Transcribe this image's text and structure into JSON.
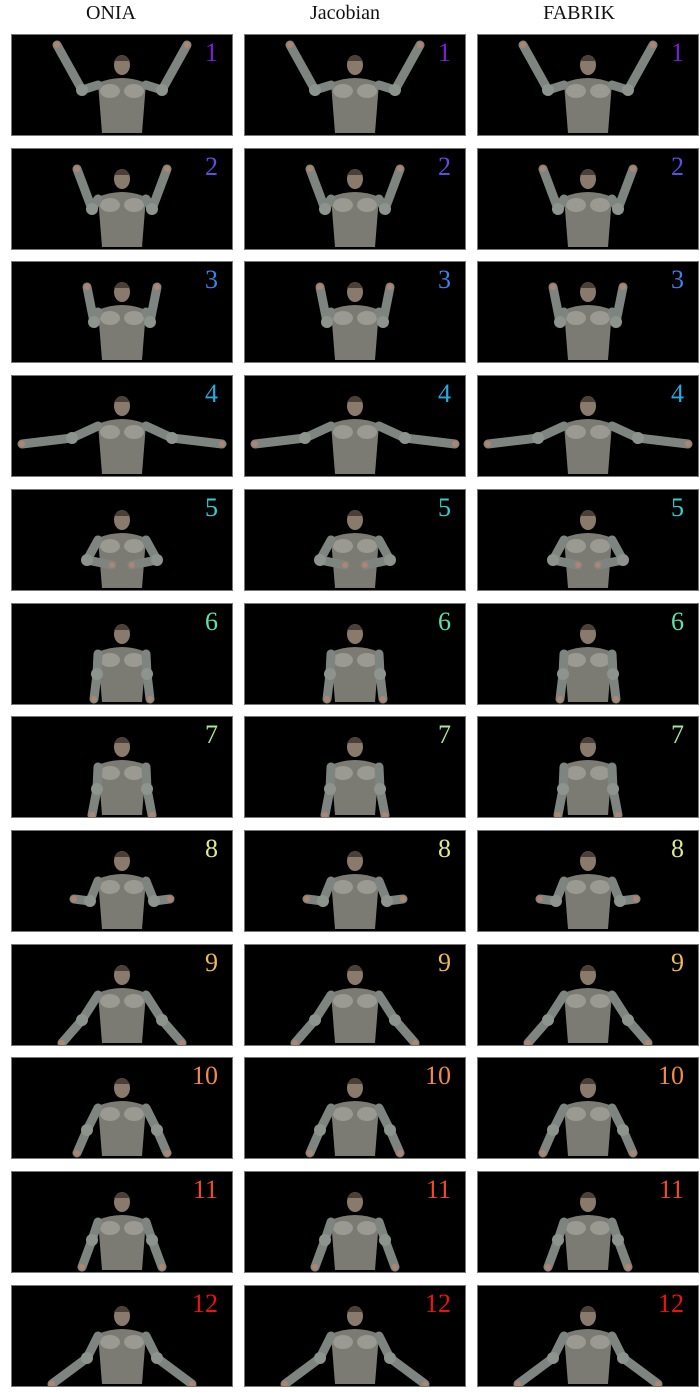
{
  "columns": [
    "ONIA",
    "Jacobian",
    "FABRIK"
  ],
  "rows": [
    {
      "label": "1",
      "color": "#7a1fd6"
    },
    {
      "label": "2",
      "color": "#5a4fe0"
    },
    {
      "label": "3",
      "color": "#3f7fe8"
    },
    {
      "label": "4",
      "color": "#28a8e0"
    },
    {
      "label": "5",
      "color": "#2fd0d0"
    },
    {
      "label": "6",
      "color": "#5fe0a8"
    },
    {
      "label": "7",
      "color": "#a8e890"
    },
    {
      "label": "8",
      "color": "#e0e88a"
    },
    {
      "label": "9",
      "color": "#f0b85a"
    },
    {
      "label": "10",
      "color": "#f08a4a"
    },
    {
      "label": "11",
      "color": "#f04a2a"
    },
    {
      "label": "12",
      "color": "#f01010"
    }
  ],
  "pose_icon": "armored-figure-icon"
}
